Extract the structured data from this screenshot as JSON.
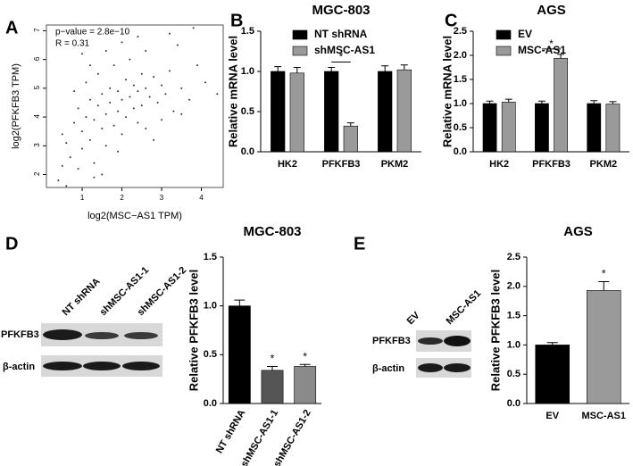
{
  "panel_labels": [
    "A",
    "B",
    "C",
    "D",
    "E"
  ],
  "blots": [
    {
      "lanes": [
        "NT shRNA",
        "shMSC-AS1-1",
        "shMSC-AS1-2"
      ],
      "rows": [
        "PFKFB3",
        "β-actin"
      ]
    },
    {
      "lanes": [
        "EV",
        "MSC-AS1"
      ],
      "rows": [
        "PFKFB3",
        "β-actin"
      ]
    }
  ],
  "chart_data": [
    {
      "type": "scatter",
      "annotations": [
        "p−value = 2.8e−10",
        "R = 0.31"
      ],
      "x_label": "log2(MSC−AS1 TPM)",
      "y_label": "log2(PFKFB3 TPM)",
      "color": "#333333",
      "x": [
        0.4,
        0.5,
        0.6,
        0.7,
        0.8,
        0.9,
        0.9,
        1.0,
        1.0,
        1.1,
        1.1,
        1.2,
        1.2,
        1.3,
        1.3,
        1.4,
        1.4,
        1.5,
        1.5,
        1.6,
        1.6,
        1.7,
        1.7,
        1.8,
        1.8,
        1.9,
        1.9,
        2.0,
        2.0,
        2.1,
        2.1,
        2.2,
        2.2,
        2.3,
        2.3,
        2.4,
        2.4,
        2.5,
        2.5,
        2.6,
        2.6,
        2.7,
        2.8,
        2.9,
        3.0,
        3.0,
        3.1,
        3.2,
        3.3,
        3.5,
        3.7,
        3.9,
        4.1,
        4.4,
        2.0,
        3.2,
        1.0,
        0.6,
        1.5,
        2.6,
        1.2,
        0.8,
        1.9,
        2.8,
        3.4,
        3.5,
        0.5,
        1.6,
        2.4,
        1.3,
        3.8
      ],
      "y": [
        1.8,
        2.3,
        3.1,
        2.6,
        3.8,
        2.2,
        4.3,
        3.5,
        2.9,
        4.0,
        5.2,
        3.2,
        4.6,
        3.9,
        2.4,
        4.4,
        5.5,
        3.6,
        4.8,
        4.1,
        3.0,
        5.0,
        4.5,
        3.7,
        5.8,
        4.2,
        4.9,
        4.6,
        3.4,
        5.3,
        4.0,
        4.7,
        6.0,
        4.3,
        5.1,
        3.8,
        4.9,
        5.5,
        4.4,
        5.0,
        3.6,
        4.7,
        5.4,
        4.5,
        5.1,
        3.9,
        4.8,
        5.6,
        4.2,
        5.0,
        4.6,
        5.8,
        5.2,
        4.8,
        6.6,
        6.9,
        6.2,
        1.6,
        2.0,
        6.3,
        5.8,
        4.9,
        2.8,
        3.2,
        6.5,
        4.1,
        3.4,
        6.3,
        6.8,
        1.9,
        7.1
      ],
      "xlim": [
        0.1,
        4.55
      ],
      "xticks": [
        1,
        2,
        3,
        4
      ],
      "ylim": [
        1.55,
        7.2
      ],
      "yticks": [
        2,
        3,
        4,
        5,
        6,
        7
      ]
    },
    {
      "type": "bar",
      "title": "MGC-803",
      "y_label": "Relative mRNA level",
      "categories": [
        "HK2",
        "PFKFB3",
        "PKM2"
      ],
      "series": [
        {
          "name": "NT shRNA",
          "color": "#000000",
          "values": [
            1.0,
            1.0,
            1.0
          ],
          "errors": [
            0.06,
            0.05,
            0.07
          ]
        },
        {
          "name": "shMSC-AS1",
          "color": "#9a9a9a",
          "values": [
            0.98,
            0.32,
            1.02
          ],
          "errors": [
            0.07,
            0.04,
            0.06
          ]
        }
      ],
      "significance": [
        null,
        "*",
        null
      ],
      "ylim": [
        0,
        1.5
      ],
      "yticks": [
        {
          "value": 0,
          "label": "0.0"
        },
        {
          "value": 0.5,
          "label": "0.5"
        },
        {
          "value": 1,
          "label": "1.0"
        },
        {
          "value": 1.5,
          "label": "1.5"
        }
      ]
    },
    {
      "type": "bar",
      "title": "AGS",
      "y_label": "Relative mRNA level",
      "categories": [
        "HK2",
        "PFKFB3",
        "PKM2"
      ],
      "series": [
        {
          "name": "EV",
          "color": "#000000",
          "values": [
            1.0,
            1.0,
            1.0
          ],
          "errors": [
            0.05,
            0.05,
            0.06
          ]
        },
        {
          "name": "MSC-AS1",
          "color": "#9a9a9a",
          "values": [
            1.03,
            1.94,
            0.99
          ],
          "errors": [
            0.06,
            0.08,
            0.05
          ]
        }
      ],
      "significance": [
        null,
        "*",
        null
      ],
      "ylim": [
        0,
        2.5
      ],
      "yticks": [
        {
          "value": 0,
          "label": "0.0"
        },
        {
          "value": 0.5,
          "label": "0.5"
        },
        {
          "value": 1,
          "label": "1.0"
        },
        {
          "value": 1.5,
          "label": "1.5"
        },
        {
          "value": 2,
          "label": "2.0"
        },
        {
          "value": 2.5,
          "label": "2.5"
        }
      ]
    },
    {
      "type": "bar",
      "title": "MGC-803",
      "y_label": "Relative PFKFB3 level",
      "categories": [
        "NT shRNA",
        "shMSC-AS1-1",
        "shMSC-AS1-2"
      ],
      "values": [
        1.0,
        0.34,
        0.38
      ],
      "errors": [
        0.06,
        0.04,
        0.02
      ],
      "colors": [
        "#000000",
        "#555555",
        "#8a8a8a"
      ],
      "significance": [
        null,
        "*",
        "*"
      ],
      "ylim": [
        0,
        1.5
      ],
      "yticks": [
        {
          "value": 0,
          "label": "0.0"
        },
        {
          "value": 0.5,
          "label": "0.5"
        },
        {
          "value": 1,
          "label": "1.0"
        },
        {
          "value": 1.5,
          "label": "1.5"
        }
      ]
    },
    {
      "type": "bar",
      "title": "AGS",
      "y_label": "Relative PFKFB3 level",
      "categories": [
        "EV",
        "MSC-AS1"
      ],
      "values": [
        1.0,
        1.93
      ],
      "errors": [
        0.04,
        0.15
      ],
      "colors": [
        "#000000",
        "#9a9a9a"
      ],
      "significance": [
        null,
        "*"
      ],
      "ylim": [
        0,
        2.5
      ],
      "yticks": [
        {
          "value": 0,
          "label": "0.0"
        },
        {
          "value": 0.5,
          "label": "0.5"
        },
        {
          "value": 1,
          "label": "1.0"
        },
        {
          "value": 1.5,
          "label": "1.5"
        },
        {
          "value": 2,
          "label": "2.0"
        },
        {
          "value": 2.5,
          "label": "2.5"
        }
      ]
    }
  ]
}
